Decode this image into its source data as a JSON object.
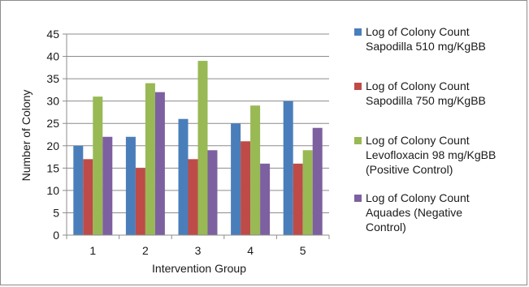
{
  "chart_data": {
    "type": "bar",
    "categories": [
      "1",
      "2",
      "3",
      "4",
      "5"
    ],
    "xlabel": "Intervention Group",
    "ylabel": "Number of Colony",
    "ylim": [
      0,
      45
    ],
    "yticks": [
      0,
      5,
      10,
      15,
      20,
      25,
      30,
      35,
      40,
      45
    ],
    "grid": "horizontal",
    "legend_position": "right",
    "series": [
      {
        "name": "Log of Colony Count\nSapodilla 510 mg/KgBB",
        "color": "#4a7ebb",
        "values": [
          20,
          22,
          26,
          25,
          30
        ]
      },
      {
        "name": "Log of Colony Count\nSapodilla 750 mg/KgBB",
        "color": "#be4b48",
        "values": [
          17,
          15,
          17,
          21,
          16
        ]
      },
      {
        "name": "Log of Colony Count\nLevofloxacin 98 mg/KgBB\n(Positive Control)",
        "color": "#98b954",
        "values": [
          31,
          34,
          39,
          29,
          19
        ]
      },
      {
        "name": "Log of Colony Count\nAquades (Negative\nControl)",
        "color": "#7d60a0",
        "values": [
          22,
          32,
          19,
          16,
          24
        ]
      }
    ]
  }
}
